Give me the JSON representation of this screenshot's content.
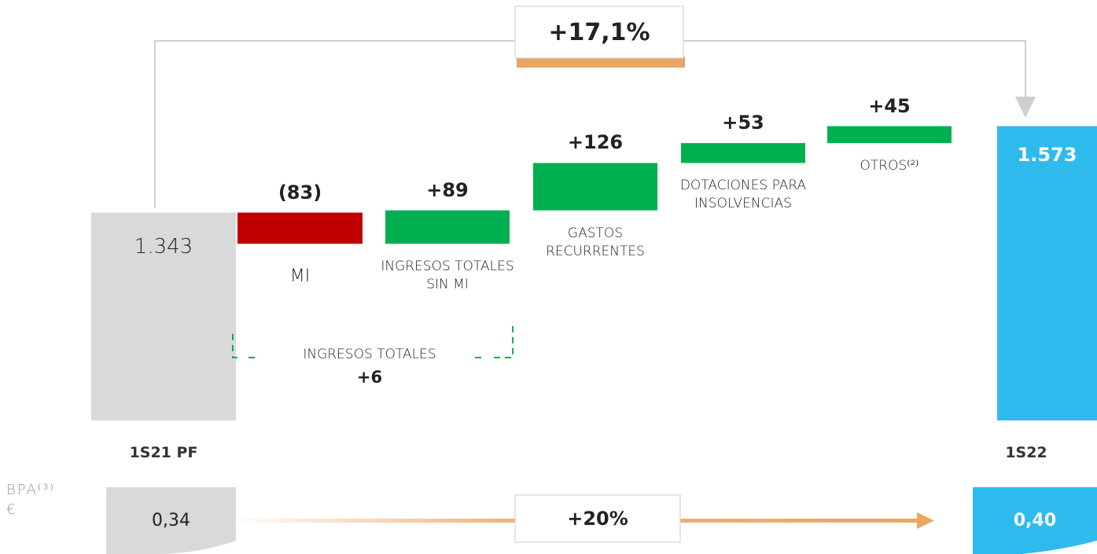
{
  "chart_data": {
    "type": "waterfall",
    "categories": [
      "1S21 PF",
      "MI",
      "INGRESOS TOTALES SIN MI",
      "GASTOS RECURRENTES",
      "DOTACIONES PARA INSOLVENCIAS",
      "OTROS⁽²⁾",
      "1S22"
    ],
    "values": [
      1343,
      -83,
      89,
      126,
      53,
      45,
      1573
    ],
    "value_labels": [
      "1.343",
      "(83)",
      "+89",
      "+126",
      "+53",
      "+45",
      "1.573"
    ],
    "total_indices": [
      0,
      6
    ],
    "colors": {
      "start": "#d9d9d9",
      "decrease": "#c00000",
      "increase": "#00b050",
      "end": "#2fbaee"
    },
    "ylim": [
      790,
      1800
    ],
    "total_change": "+17,1%",
    "group": {
      "label": "INGRESOS TOTALES",
      "value_label": "+6"
    },
    "eps": {
      "label": "BPA⁽³⁾",
      "unit": "€",
      "values": [
        0.34,
        0.4
      ],
      "value_labels": [
        "0,34",
        "0,40"
      ],
      "change": "+20%"
    }
  }
}
